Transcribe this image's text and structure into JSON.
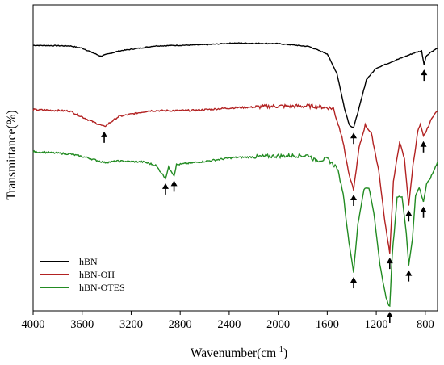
{
  "chart_data": {
    "type": "line",
    "xlabel": "Wavenumber(cm",
    "xlabel_sup": "-1",
    "xlabel_close": ")",
    "ylabel": "Transmittance(%)",
    "xlim": [
      4000,
      700
    ],
    "x_reversed": true,
    "x_ticks": [
      4000,
      3600,
      3200,
      2800,
      2400,
      2000,
      1600,
      1200,
      800
    ],
    "y_ticks_shown": false,
    "grid": false,
    "legend_placement": "bottom-left",
    "y_units": "arbitrary (offset)",
    "series": [
      {
        "name": "hBN",
        "color": "#000000",
        "points": [
          [
            4000,
            0.92
          ],
          [
            3700,
            0.918
          ],
          [
            3600,
            0.91
          ],
          [
            3450,
            0.882
          ],
          [
            3300,
            0.9
          ],
          [
            3000,
            0.918
          ],
          [
            2600,
            0.922
          ],
          [
            2370,
            0.928
          ],
          [
            2000,
            0.926
          ],
          [
            1750,
            0.916
          ],
          [
            1600,
            0.89
          ],
          [
            1520,
            0.82
          ],
          [
            1460,
            0.7
          ],
          [
            1420,
            0.64
          ],
          [
            1385,
            0.63
          ],
          [
            1340,
            0.7
          ],
          [
            1280,
            0.8
          ],
          [
            1200,
            0.84
          ],
          [
            1000,
            0.875
          ],
          [
            880,
            0.895
          ],
          [
            830,
            0.9
          ],
          [
            810,
            0.852
          ],
          [
            795,
            0.88
          ],
          [
            760,
            0.895
          ],
          [
            700,
            0.91
          ]
        ]
      },
      {
        "name": "hBN-OH",
        "color": "#b22222",
        "points": [
          [
            4000,
            0.694
          ],
          [
            3700,
            0.689
          ],
          [
            3560,
            0.66
          ],
          [
            3420,
            0.634
          ],
          [
            3300,
            0.67
          ],
          [
            3050,
            0.69
          ],
          [
            2700,
            0.691
          ],
          [
            2370,
            0.7
          ],
          [
            2000,
            0.706
          ],
          [
            1700,
            0.706
          ],
          [
            1550,
            0.698
          ],
          [
            1480,
            0.6
          ],
          [
            1420,
            0.46
          ],
          [
            1385,
            0.412
          ],
          [
            1340,
            0.56
          ],
          [
            1290,
            0.64
          ],
          [
            1240,
            0.61
          ],
          [
            1180,
            0.48
          ],
          [
            1130,
            0.3
          ],
          [
            1090,
            0.19
          ],
          [
            1060,
            0.44
          ],
          [
            1010,
            0.58
          ],
          [
            970,
            0.52
          ],
          [
            935,
            0.357
          ],
          [
            900,
            0.5
          ],
          [
            860,
            0.62
          ],
          [
            840,
            0.64
          ],
          [
            815,
            0.6
          ],
          [
            790,
            0.62
          ],
          [
            740,
            0.67
          ],
          [
            700,
            0.69
          ]
        ]
      },
      {
        "name": "hBN-OTES",
        "color": "#228b22",
        "points": [
          [
            4000,
            0.546
          ],
          [
            3700,
            0.538
          ],
          [
            3560,
            0.525
          ],
          [
            3420,
            0.508
          ],
          [
            3300,
            0.513
          ],
          [
            3100,
            0.51
          ],
          [
            3000,
            0.498
          ],
          [
            2950,
            0.47
          ],
          [
            2920,
            0.452
          ],
          [
            2895,
            0.49
          ],
          [
            2875,
            0.48
          ],
          [
            2850,
            0.462
          ],
          [
            2830,
            0.5
          ],
          [
            2600,
            0.512
          ],
          [
            2370,
            0.525
          ],
          [
            2000,
            0.531
          ],
          [
            1750,
            0.533
          ],
          [
            1700,
            0.515
          ],
          [
            1600,
            0.52
          ],
          [
            1520,
            0.49
          ],
          [
            1470,
            0.4
          ],
          [
            1430,
            0.25
          ],
          [
            1385,
            0.122
          ],
          [
            1350,
            0.29
          ],
          [
            1300,
            0.415
          ],
          [
            1260,
            0.42
          ],
          [
            1220,
            0.33
          ],
          [
            1170,
            0.15
          ],
          [
            1120,
            0.03
          ],
          [
            1090,
            0.0
          ],
          [
            1070,
            0.18
          ],
          [
            1030,
            0.385
          ],
          [
            990,
            0.39
          ],
          [
            955,
            0.26
          ],
          [
            935,
            0.146
          ],
          [
            905,
            0.24
          ],
          [
            880,
            0.39
          ],
          [
            850,
            0.42
          ],
          [
            815,
            0.37
          ],
          [
            790,
            0.43
          ],
          [
            750,
            0.46
          ],
          [
            700,
            0.51
          ]
        ]
      }
    ],
    "arrows": [
      {
        "series": 0,
        "x": 1385
      },
      {
        "series": 0,
        "x": 810
      },
      {
        "series": 1,
        "x": 3420
      },
      {
        "series": 1,
        "x": 1385
      },
      {
        "series": 1,
        "x": 1090
      },
      {
        "series": 1,
        "x": 935
      },
      {
        "series": 1,
        "x": 815
      },
      {
        "series": 2,
        "x": 2920
      },
      {
        "series": 2,
        "x": 2850
      },
      {
        "series": 2,
        "x": 1385
      },
      {
        "series": 2,
        "x": 1090
      },
      {
        "series": 2,
        "x": 935
      },
      {
        "series": 2,
        "x": 815
      }
    ]
  }
}
